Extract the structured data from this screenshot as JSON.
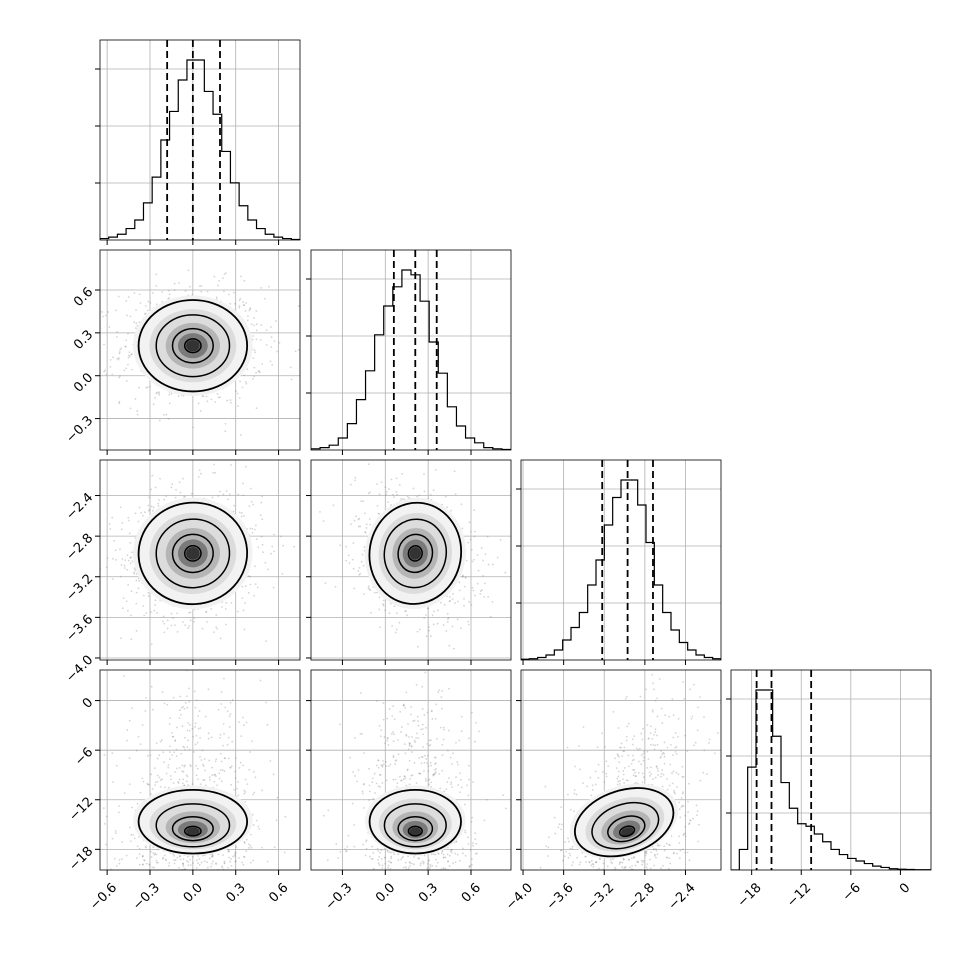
{
  "chart_data": {
    "type": "corner",
    "title": "",
    "grid": true,
    "variables": [
      {
        "range": [
          -0.65,
          0.75
        ],
        "ticks": [
          -0.6,
          -0.3,
          0.0,
          0.3,
          0.6
        ],
        "tick_labels": [
          "−0.6",
          "−0.3",
          "0.0",
          "0.3",
          "0.6"
        ],
        "quantiles": [
          -0.18,
          0.0,
          0.19
        ],
        "hist": [
          0.5,
          1,
          2,
          4,
          7,
          13,
          22,
          35,
          45,
          56,
          63,
          63,
          52,
          44,
          31,
          20,
          12,
          7,
          4,
          2,
          1,
          0.5,
          0.2
        ]
      },
      {
        "range": [
          -0.52,
          0.88
        ],
        "ticks": [
          -0.3,
          0.0,
          0.3,
          0.6
        ],
        "tick_labels": [
          "−0.3",
          "0.0",
          "0.3",
          "0.6"
        ],
        "quantiles": [
          0.06,
          0.21,
          0.36
        ],
        "hist": [
          0.5,
          1,
          2,
          5,
          11,
          21,
          33,
          48,
          60,
          68,
          75,
          73,
          62,
          45,
          32,
          18,
          10,
          5,
          3,
          1,
          0.5,
          0.2
        ]
      },
      {
        "range": [
          -4.02,
          -2.05
        ],
        "ticks": [
          -4.0,
          -3.6,
          -3.2,
          -2.8,
          -2.4
        ],
        "tick_labels": [
          "−4.0",
          "−3.6",
          "−3.2",
          "−2.8",
          "−2.4"
        ],
        "quantiles": [
          -3.22,
          -2.97,
          -2.72
        ],
        "hist": [
          0.3,
          0.5,
          1,
          2,
          4,
          8,
          13,
          19,
          30,
          40,
          54,
          65,
          72,
          72,
          62,
          47,
          30,
          19,
          12,
          7,
          4,
          2,
          1,
          0.5
        ]
      },
      {
        "range": [
          -20.5,
          3.7
        ],
        "ticks": [
          -18,
          -12,
          -6,
          0
        ],
        "tick_labels": [
          "−18",
          "−12",
          "−6",
          "0"
        ],
        "quantiles": [
          -17.4,
          -15.6,
          -10.8
        ],
        "hist": [
          0,
          8,
          40,
          70,
          70,
          52,
          34,
          24,
          18,
          17,
          14,
          11,
          8,
          6,
          4.5,
          3.5,
          2.5,
          1.5,
          1,
          0.5,
          0.3,
          0.2,
          0.1,
          0.1
        ]
      }
    ],
    "y_ticks": [
      null,
      {
        "ticks": [
          -0.3,
          0.0,
          0.3,
          0.6
        ],
        "tick_labels": [
          "−0.3",
          "0.0",
          "0.3",
          "0.6"
        ]
      },
      {
        "ticks": [
          -4.0,
          -3.6,
          -3.2,
          -2.8,
          -2.4
        ],
        "tick_labels": [
          "−4.0",
          "−3.6",
          "−3.2",
          "−2.8",
          "−2.4"
        ]
      },
      {
        "ticks": [
          -18,
          -12,
          -6,
          0
        ],
        "tick_labels": [
          "−18",
          "−12",
          "−6",
          "0"
        ]
      }
    ],
    "pair_ranges": {
      "1": [
        -0.52,
        0.88
      ],
      "2": [
        -4.02,
        -2.05
      ],
      "3": [
        -20.5,
        3.7
      ]
    },
    "correlations": {
      "1_0": 0.0,
      "2_0": 0.1,
      "2_1": -0.25,
      "3_0": 0.0,
      "3_1": 0.0,
      "3_2": 0.45
    },
    "centers": [
      0.0,
      0.21,
      -2.97,
      -16.0
    ],
    "spreads": [
      0.19,
      0.16,
      0.25,
      3.5
    ]
  }
}
